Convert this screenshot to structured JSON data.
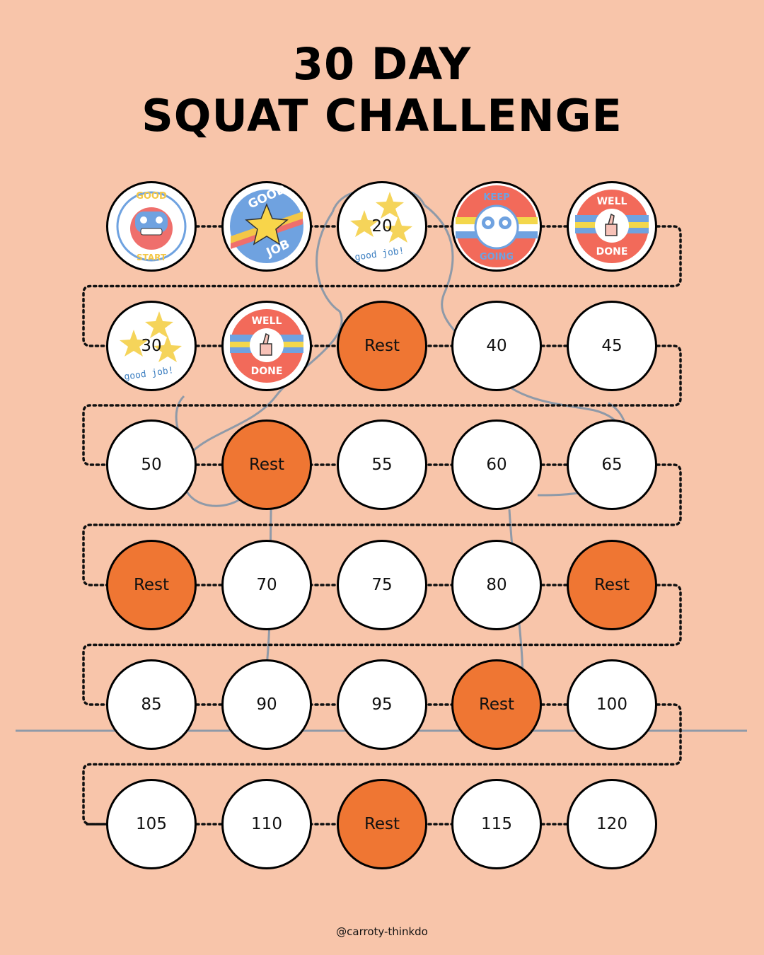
{
  "title": {
    "line1": "30 DAY",
    "line2": "SQUAT CHALLENGE"
  },
  "footer": "@carroty-thinkdo",
  "colors": {
    "background": "#f8c5aa",
    "rest": "#ef7633",
    "circle": "#ffffff"
  },
  "days": [
    {
      "label": "",
      "sticker": "good-start",
      "sticker_text": [
        "GOOD",
        "START"
      ]
    },
    {
      "label": "",
      "sticker": "good-job-star",
      "sticker_text": [
        "GOOD",
        "JOB"
      ]
    },
    {
      "label": "20",
      "sticker": "good-job-stars",
      "sticker_text": [
        "good job!"
      ]
    },
    {
      "label": "",
      "sticker": "keep-going",
      "sticker_text": [
        "KEEP",
        "GOING"
      ]
    },
    {
      "label": "",
      "sticker": "well-done",
      "sticker_text": [
        "WELL",
        "DONE"
      ]
    },
    {
      "label": "30",
      "sticker": "good-job-stars",
      "sticker_text": [
        "good job!"
      ]
    },
    {
      "label": "",
      "sticker": "well-done",
      "sticker_text": [
        "WELL",
        "DONE"
      ]
    },
    {
      "label": "Rest",
      "rest": true
    },
    {
      "label": "40"
    },
    {
      "label": "45"
    },
    {
      "label": "50"
    },
    {
      "label": "Rest",
      "rest": true
    },
    {
      "label": "55"
    },
    {
      "label": "60"
    },
    {
      "label": "65"
    },
    {
      "label": "Rest",
      "rest": true
    },
    {
      "label": "70"
    },
    {
      "label": "75"
    },
    {
      "label": "80"
    },
    {
      "label": "Rest",
      "rest": true
    },
    {
      "label": "85"
    },
    {
      "label": "90"
    },
    {
      "label": "95"
    },
    {
      "label": "Rest",
      "rest": true
    },
    {
      "label": "100"
    },
    {
      "label": "105"
    },
    {
      "label": "110"
    },
    {
      "label": "Rest",
      "rest": true
    },
    {
      "label": "115"
    },
    {
      "label": "120"
    }
  ]
}
